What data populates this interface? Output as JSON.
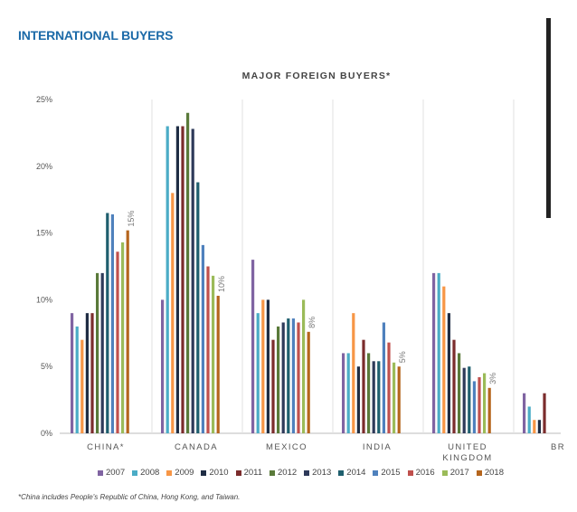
{
  "page": {
    "heading": "INTERNATIONAL BUYERS",
    "footnote": "*China includes People's Republic of China, Hong Kong, and Taiwan."
  },
  "chart_data": {
    "type": "bar",
    "title": "MAJOR FOREIGN BUYERS*",
    "xlabel": "",
    "ylabel": "",
    "ylim": [
      0,
      25
    ],
    "yticks": [
      "0%",
      "5%",
      "10%",
      "15%",
      "20%",
      "25%"
    ],
    "categories": [
      "CHINA*",
      "CANADA",
      "MEXICO",
      "INDIA",
      "UNITED KINGDOM",
      "BR"
    ],
    "category_lines": [
      [
        "CHINA*"
      ],
      [
        "CANADA"
      ],
      [
        "MEXICO"
      ],
      [
        "INDIA"
      ],
      [
        "UNITED",
        "KINGDOM"
      ],
      [
        "BR"
      ]
    ],
    "bar_labels": [
      "15%",
      "10%",
      "8%",
      "5%",
      "3%",
      ""
    ],
    "series": [
      {
        "name": "2007",
        "color": "#8064a2",
        "values": [
          9,
          10,
          13,
          6,
          12,
          3
        ]
      },
      {
        "name": "2008",
        "color": "#4bacc6",
        "values": [
          8,
          23,
          9,
          6,
          12,
          2
        ]
      },
      {
        "name": "2009",
        "color": "#f79646",
        "values": [
          7,
          18,
          10,
          9,
          11,
          1
        ]
      },
      {
        "name": "2010",
        "color": "#1f2d44",
        "values": [
          9,
          23,
          10,
          5,
          9,
          1
        ]
      },
      {
        "name": "2011",
        "color": "#7b2c2c",
        "values": [
          9,
          23,
          7,
          7,
          7,
          3
        ]
      },
      {
        "name": "2012",
        "color": "#5a7a3a",
        "values": [
          12,
          24,
          8,
          6,
          6,
          null
        ]
      },
      {
        "name": "2013",
        "color": "#2e3a5a",
        "values": [
          12,
          22.8,
          8.3,
          5.4,
          4.9,
          null
        ]
      },
      {
        "name": "2014",
        "color": "#1f5f6e",
        "values": [
          16.5,
          18.8,
          8.6,
          5.4,
          5,
          null
        ]
      },
      {
        "name": "2015",
        "color": "#4f81bd",
        "values": [
          16.4,
          14.1,
          8.6,
          8.3,
          3.9,
          null
        ]
      },
      {
        "name": "2016",
        "color": "#c0504d",
        "values": [
          13.6,
          12.5,
          8.3,
          6.8,
          4.2,
          null
        ]
      },
      {
        "name": "2017",
        "color": "#9bbb59",
        "values": [
          14.3,
          11.8,
          10,
          5.3,
          4.5,
          null
        ]
      },
      {
        "name": "2018",
        "color": "#b5651d",
        "values": [
          15.2,
          10.3,
          7.6,
          5,
          3.4,
          null
        ]
      }
    ],
    "grid": false,
    "legend": "bottom"
  }
}
